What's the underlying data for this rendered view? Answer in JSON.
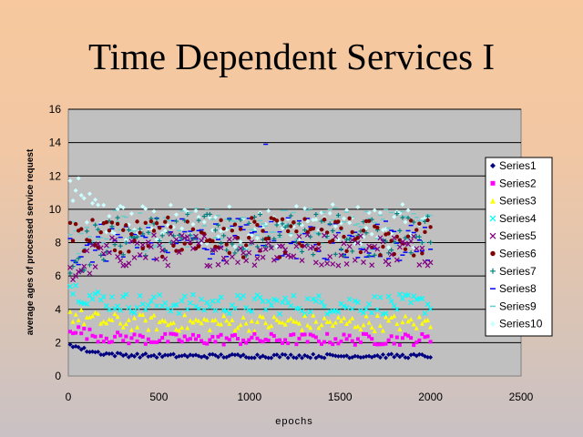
{
  "slide": {
    "title": "Time Dependent Services I"
  },
  "chart_data": {
    "type": "scatter",
    "title": "",
    "xlabel": "epochs",
    "ylabel": "average ages of processed service request",
    "xlim": [
      0,
      2500
    ],
    "ylim": [
      0,
      16
    ],
    "xticks": [
      0,
      500,
      1000,
      1500,
      2000,
      2500
    ],
    "yticks": [
      0,
      2,
      4,
      6,
      8,
      10,
      12,
      14,
      16
    ],
    "grid": "horizontal",
    "legend_position": "right",
    "x_range": [
      0,
      2000
    ],
    "series": [
      {
        "name": "Series1",
        "color": "#000080",
        "marker": "diamond",
        "level": 1.2,
        "start": 2.0,
        "spread": 0.12
      },
      {
        "name": "Series2",
        "color": "#ff00ff",
        "marker": "square",
        "level": 2.2,
        "start": 3.0,
        "spread": 0.35
      },
      {
        "name": "Series3",
        "color": "#ffff00",
        "marker": "triangle",
        "level": 3.2,
        "start": 3.8,
        "spread": 0.5
      },
      {
        "name": "Series4",
        "color": "#00ffff",
        "marker": "x",
        "level": 4.3,
        "start": 5.5,
        "spread": 0.6
      },
      {
        "name": "Series5",
        "color": "#800080",
        "marker": "x",
        "level": 7.6,
        "start": 5.8,
        "spread": 1.0
      },
      {
        "name": "Series6",
        "color": "#800000",
        "marker": "circle",
        "level": 8.3,
        "start": 9.0,
        "spread": 1.2
      },
      {
        "name": "Series7",
        "color": "#008080",
        "marker": "plus",
        "level": 8.5,
        "start": 6.5,
        "spread": 1.3
      },
      {
        "name": "Series8",
        "color": "#0000ff",
        "marker": "dash",
        "level": 8.2,
        "start": 7.5,
        "spread": 1.3
      },
      {
        "name": "Series9",
        "color": "#66cccc",
        "marker": "dash",
        "level": 8.8,
        "start": 8.0,
        "spread": 1.3
      },
      {
        "name": "Series10",
        "color": "#ccffff",
        "marker": "diamond",
        "level": 9.0,
        "start": 11.5,
        "spread": 1.3
      }
    ],
    "annotations": [
      {
        "series": "Series8",
        "x": 1090,
        "y": 13.9
      }
    ]
  }
}
